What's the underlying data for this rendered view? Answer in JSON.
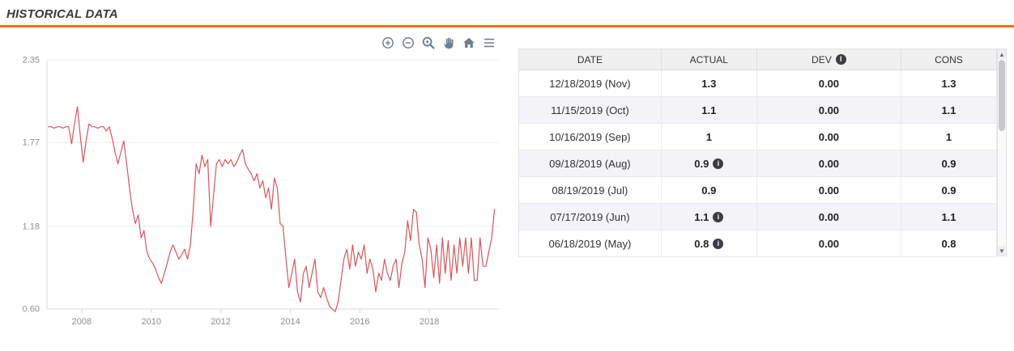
{
  "page": {
    "title": "HISTORICAL DATA",
    "accent_color": "#f07000",
    "background": "#ffffff"
  },
  "chart_toolbar": {
    "icons": [
      "zoom-in-icon",
      "zoom-out-icon",
      "selection-zoom-icon",
      "pan-icon",
      "home-icon",
      "menu-icon"
    ],
    "icon_color": "#6e8192"
  },
  "chart_data": {
    "type": "line",
    "title": "",
    "xlabel": "",
    "ylabel": "",
    "legend": "none",
    "grid": "horizontal",
    "ylim": [
      0.6,
      2.35
    ],
    "xlim": [
      2007.0,
      2020.0
    ],
    "y_ticks": [
      2.35,
      1.77,
      1.18,
      0.6
    ],
    "y_tick_labels": [
      "2.35",
      "1.77",
      "1.18",
      "0.60"
    ],
    "x_ticks": [
      2008,
      2010,
      2012,
      2014,
      2016,
      2018
    ],
    "series": [
      {
        "name": "actual",
        "color": "#d9565c",
        "x_start_year": 2007,
        "points_per_year": 12,
        "values": [
          1.88,
          1.88,
          1.87,
          1.88,
          1.88,
          1.87,
          1.88,
          1.88,
          1.76,
          1.9,
          2.02,
          1.82,
          1.63,
          1.78,
          1.9,
          1.88,
          1.88,
          1.87,
          1.88,
          1.88,
          1.85,
          1.88,
          1.8,
          1.7,
          1.62,
          1.7,
          1.78,
          1.62,
          1.45,
          1.3,
          1.2,
          1.26,
          1.1,
          1.15,
          1.0,
          0.95,
          0.92,
          0.88,
          0.82,
          0.78,
          0.85,
          0.92,
          1.0,
          1.05,
          1.0,
          0.95,
          0.98,
          1.02,
          0.95,
          1.05,
          1.3,
          1.62,
          1.55,
          1.68,
          1.6,
          1.65,
          1.18,
          1.4,
          1.62,
          1.65,
          1.6,
          1.65,
          1.62,
          1.65,
          1.6,
          1.63,
          1.68,
          1.72,
          1.62,
          1.58,
          1.55,
          1.5,
          1.55,
          1.45,
          1.5,
          1.38,
          1.45,
          1.3,
          1.52,
          1.45,
          1.2,
          1.18,
          0.95,
          0.75,
          0.85,
          0.95,
          0.72,
          0.65,
          0.85,
          0.9,
          0.75,
          0.85,
          0.95,
          0.72,
          0.68,
          0.75,
          0.68,
          0.62,
          0.6,
          0.58,
          0.65,
          0.8,
          0.95,
          1.02,
          0.88,
          1.05,
          0.9,
          1.0,
          0.95,
          1.05,
          0.85,
          0.95,
          0.88,
          0.72,
          0.85,
          0.8,
          0.95,
          0.85,
          0.8,
          0.9,
          0.95,
          0.75,
          0.92,
          1.0,
          1.22,
          1.08,
          1.3,
          1.28,
          1.05,
          0.95,
          0.75,
          1.1,
          1.02,
          0.82,
          1.05,
          0.78,
          1.1,
          0.85,
          1.08,
          0.8,
          1.05,
          0.85,
          1.1,
          0.9,
          1.1,
          0.85,
          1.1,
          0.8,
          0.8,
          1.1,
          0.9,
          0.9,
          1.0,
          1.1,
          1.3
        ]
      }
    ]
  },
  "table": {
    "headers": [
      "DATE",
      "ACTUAL",
      "DEV",
      "CONS"
    ],
    "dev_header_has_info_icon": true,
    "info_icon_glyph": "i",
    "rows": [
      {
        "date": "12/18/2019 (Nov)",
        "actual": "1.3",
        "actual_info": false,
        "dev": "0.00",
        "cons": "1.3"
      },
      {
        "date": "11/15/2019 (Oct)",
        "actual": "1.1",
        "actual_info": false,
        "dev": "0.00",
        "cons": "1.1"
      },
      {
        "date": "10/16/2019 (Sep)",
        "actual": "1",
        "actual_info": false,
        "dev": "0.00",
        "cons": "1"
      },
      {
        "date": "09/18/2019 (Aug)",
        "actual": "0.9",
        "actual_info": true,
        "dev": "0.00",
        "cons": "0.9"
      },
      {
        "date": "08/19/2019 (Jul)",
        "actual": "0.9",
        "actual_info": false,
        "dev": "0.00",
        "cons": "0.9"
      },
      {
        "date": "07/17/2019 (Jun)",
        "actual": "1.1",
        "actual_info": true,
        "dev": "0.00",
        "cons": "1.1"
      },
      {
        "date": "06/18/2019 (May)",
        "actual": "0.8",
        "actual_info": true,
        "dev": "0.00",
        "cons": "0.8"
      }
    ]
  },
  "scrollbar": {
    "up_icon": "▲",
    "down_icon": "▼"
  }
}
